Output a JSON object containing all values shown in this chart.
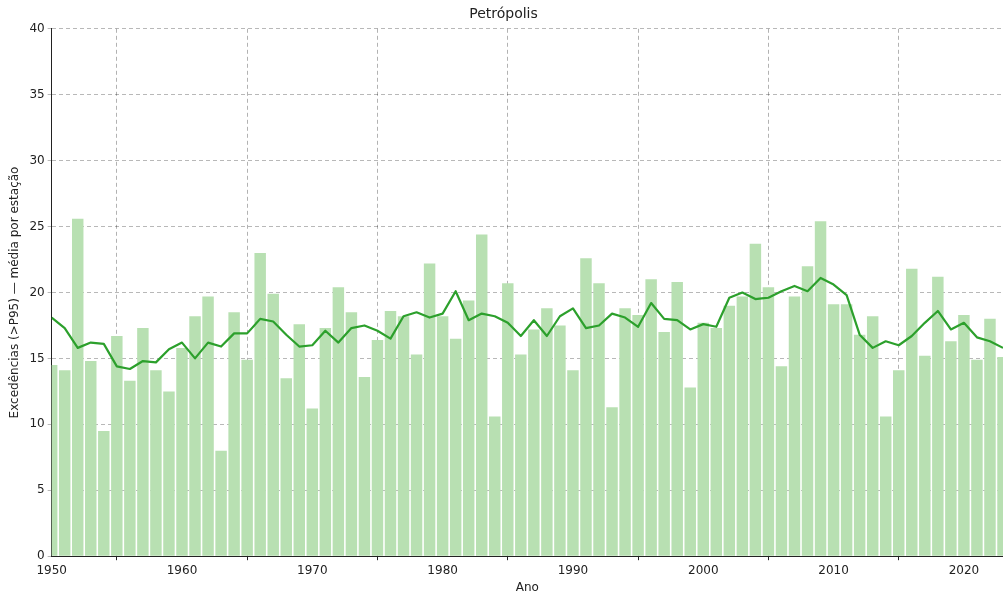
{
  "chart_data": {
    "type": "bar",
    "title": "Petrópolis",
    "xlabel": "Ano",
    "ylabel": "Excedências (>P95) — média por estação",
    "x": [
      1950,
      1951,
      1952,
      1953,
      1954,
      1955,
      1956,
      1957,
      1958,
      1959,
      1960,
      1961,
      1962,
      1963,
      1964,
      1965,
      1966,
      1967,
      1968,
      1969,
      1970,
      1971,
      1972,
      1973,
      1974,
      1975,
      1976,
      1977,
      1978,
      1979,
      1980,
      1981,
      1982,
      1983,
      1984,
      1985,
      1986,
      1987,
      1988,
      1989,
      1990,
      1991,
      1992,
      1993,
      1994,
      1995,
      1996,
      1997,
      1998,
      1999,
      2000,
      2001,
      2002,
      2003,
      2004,
      2005,
      2006,
      2007,
      2008,
      2009,
      2010,
      2011,
      2012,
      2013,
      2014,
      2015,
      2016,
      2017,
      2018,
      2019,
      2020,
      2021,
      2022,
      2023
    ],
    "series": [
      {
        "color": "#b8e0b2",
        "values": [
          14.5,
          14.1,
          25.6,
          14.8,
          9.5,
          16.7,
          13.3,
          17.3,
          14.1,
          12.5,
          15.8,
          18.2,
          19.7,
          8.0,
          18.5,
          14.9,
          23.0,
          19.9,
          13.5,
          17.6,
          11.2,
          17.3,
          20.4,
          18.5,
          13.6,
          16.4,
          18.6,
          18.2,
          15.3,
          22.2,
          18.2,
          16.5,
          19.4,
          24.4,
          10.6,
          20.7,
          15.3,
          17.2,
          18.8,
          17.5,
          14.1,
          22.6,
          20.7,
          11.3,
          18.8,
          18.3,
          21.0,
          17.0,
          20.8,
          12.8,
          17.7,
          17.3,
          19.0,
          19.7,
          23.7,
          20.4,
          14.4,
          19.7,
          22.0,
          25.4,
          19.1,
          19.1,
          16.8,
          18.2,
          10.6,
          14.1,
          21.8,
          15.2,
          21.2,
          16.3,
          18.3,
          14.9,
          18.0,
          15.1
        ]
      },
      {
        "type": "line",
        "color": "#2ca02c",
        "values": [
          18.1,
          17.3,
          15.8,
          16.2,
          16.1,
          14.4,
          14.2,
          14.8,
          14.7,
          15.7,
          16.2,
          15.0,
          16.2,
          15.9,
          16.9,
          16.9,
          18.0,
          17.8,
          16.8,
          15.9,
          16.0,
          17.1,
          16.2,
          17.3,
          17.5,
          17.1,
          16.5,
          18.2,
          18.5,
          18.1,
          18.4,
          20.1,
          17.9,
          18.4,
          18.2,
          17.7,
          16.7,
          17.9,
          16.7,
          18.2,
          18.8,
          17.3,
          17.5,
          18.4,
          18.1,
          17.4,
          19.2,
          18.0,
          17.9,
          17.2,
          17.6,
          17.4,
          19.6,
          20.0,
          19.5,
          19.6,
          20.1,
          20.5,
          20.1,
          21.1,
          20.6,
          19.8,
          16.8,
          15.8,
          16.3,
          16.0,
          16.7,
          17.7,
          18.6,
          17.2,
          17.7,
          16.6,
          16.3,
          15.8
        ]
      }
    ],
    "xlim": [
      1950,
      2023
    ],
    "ylim": [
      0,
      40
    ],
    "xticks": [
      1950,
      1960,
      1970,
      1980,
      1990,
      2000,
      2010,
      2020
    ],
    "yticks": [
      0,
      5,
      10,
      15,
      20,
      25,
      30,
      35,
      40
    ],
    "grid": true,
    "legend": false,
    "marker": "none",
    "line_style": "solid"
  }
}
